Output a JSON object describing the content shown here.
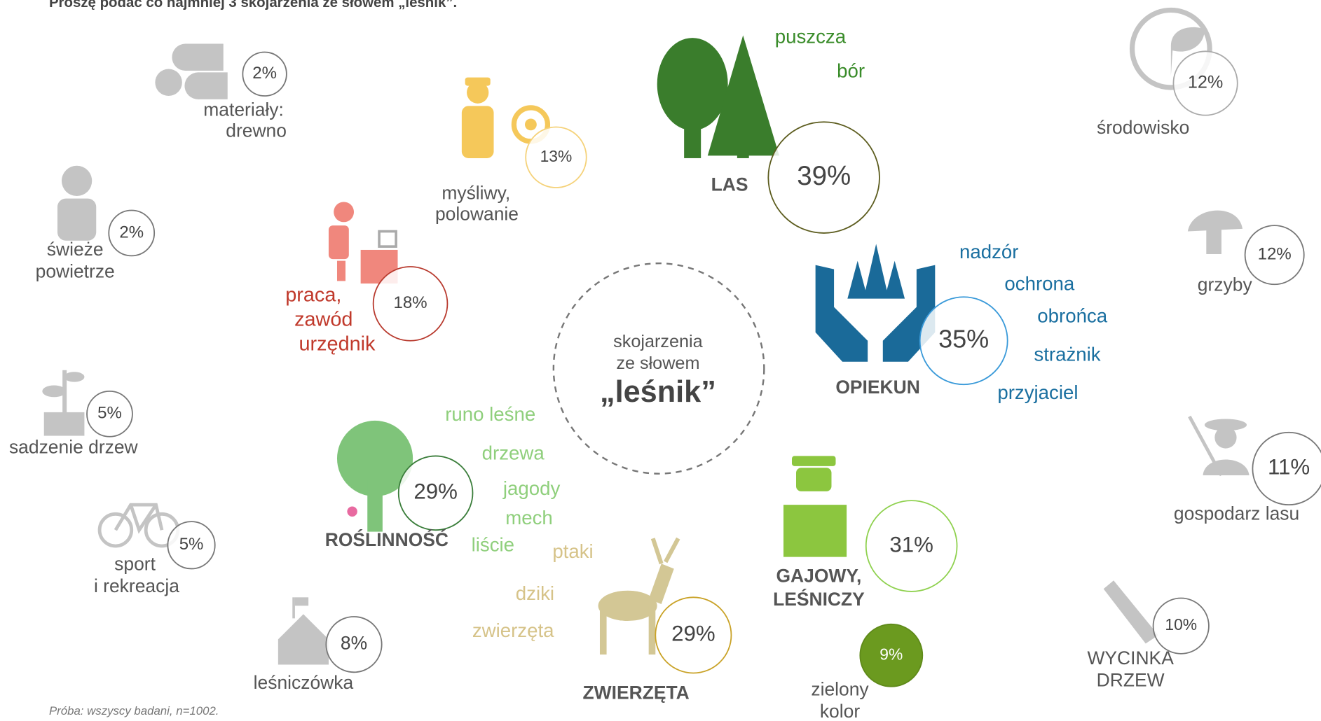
{
  "title": "Proszę podać co najmniej 3 skojarzenia ze słowem „leśnik”.",
  "center": [
    "skojarzenia",
    "ze słowem",
    "„leśnik”"
  ],
  "note": "Próba: wszyscy badani, n=1002.",
  "items": [
    {
      "label": [
        "materiały:",
        "drewno"
      ],
      "percent": "2%"
    },
    {
      "label": [
        "świeże",
        "powietrze"
      ],
      "percent": "2%"
    },
    {
      "label": [
        "sadzenie drzew"
      ],
      "percent": "5%"
    },
    {
      "label": [
        "sport",
        "i rekreacja"
      ],
      "percent": "5%"
    },
    {
      "label": [
        "leśniczówka"
      ],
      "percent": "8%"
    },
    {
      "label": [
        "myśliwy,",
        "polowanie"
      ],
      "percent": "13%"
    },
    {
      "label": [
        "praca,",
        "zawód",
        "urzędnik"
      ],
      "percent": "18%"
    },
    {
      "label": [
        "LAS"
      ],
      "percent": "39%",
      "words": [
        "puszcza",
        "bór"
      ]
    },
    {
      "label": [
        "OPIEKUN"
      ],
      "percent": "35%",
      "words": [
        "nadzór",
        "ochrona",
        "obrońca",
        "strażnik",
        "przyjaciel"
      ]
    },
    {
      "label": [
        "ROŚLINNOŚĆ"
      ],
      "percent": "29%",
      "words": [
        "runo leśne",
        "drzewa",
        "jagody",
        "mech",
        "liście"
      ]
    },
    {
      "label": [
        "ZWIERZĘTA"
      ],
      "percent": "29%",
      "words": [
        "ptaki",
        "dziki",
        "zwierzęta"
      ]
    },
    {
      "label": [
        "GAJOWY,",
        "LEŚNICZY"
      ],
      "percent": "31%"
    },
    {
      "label": [
        "zielony",
        "kolor"
      ],
      "percent": "9%"
    },
    {
      "label": [
        "środowisko"
      ],
      "percent": "12%"
    },
    {
      "label": [
        "grzyby"
      ],
      "percent": "12%"
    },
    {
      "label": [
        "gospodarz lasu"
      ],
      "percent": "11%"
    },
    {
      "label": [
        "WYCINKA",
        "DRZEW"
      ],
      "percent": "10%"
    }
  ]
}
